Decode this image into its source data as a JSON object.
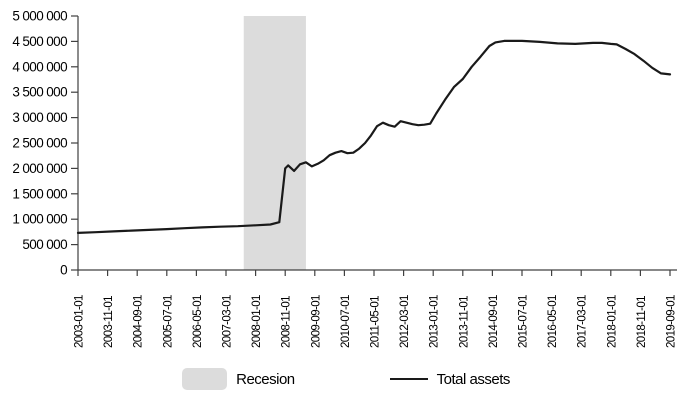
{
  "colors": {
    "background": "#ffffff",
    "axis": "#404040",
    "text": "#000000",
    "recession_band": "#dcdcdc",
    "total_assets_line": "#1a1a1a"
  },
  "legend": {
    "recession_label": "Recesion",
    "total_assets_label": "Total assets"
  },
  "chart_data": {
    "type": "line",
    "title": "",
    "xlabel": "",
    "ylabel": "",
    "grid": false,
    "legend_position": "bottom",
    "ylim": [
      0,
      5000000
    ],
    "y_tick_interval": 500000,
    "y_tick_labels": [
      "0",
      "500 000",
      "1 000 000",
      "1 500 000",
      "2 000 000",
      "2 500 000",
      "3 000 000",
      "3 500 000",
      "4 000 000",
      "4 500 000",
      "5 000 000"
    ],
    "x_range": {
      "start": "2003-01",
      "end": "2019-09"
    },
    "x_tick_labels": [
      "2003-01-01",
      "2003-11-01",
      "2004-09-01",
      "2005-07-01",
      "2006-05-01",
      "2007-03-01",
      "2008-01-01",
      "2008-11-01",
      "2009-09-01",
      "2010-07-01",
      "2011-05-01",
      "2012-03-01",
      "2013-01-01",
      "2013-11-01",
      "2014-09-01",
      "2015-07-01",
      "2016-05-01",
      "2017-03-01",
      "2018-01-01",
      "2018-11-01",
      "2019-09-01"
    ],
    "recession_band": {
      "label": "Recesion",
      "start": "2007-09",
      "end": "2009-06",
      "color": "#dcdcdc"
    },
    "series": [
      {
        "name": "Total assets",
        "color": "#1a1a1a",
        "points": [
          [
            "2003-01",
            730000
          ],
          [
            "2003-07",
            745000
          ],
          [
            "2004-01",
            760000
          ],
          [
            "2004-07",
            775000
          ],
          [
            "2005-01",
            790000
          ],
          [
            "2005-07",
            805000
          ],
          [
            "2006-01",
            822000
          ],
          [
            "2006-07",
            838000
          ],
          [
            "2007-01",
            852000
          ],
          [
            "2007-07",
            862000
          ],
          [
            "2008-01",
            880000
          ],
          [
            "2008-06",
            895000
          ],
          [
            "2008-09",
            940000
          ],
          [
            "2008-11",
            2000000
          ],
          [
            "2008-12",
            2060000
          ],
          [
            "2009-02",
            1950000
          ],
          [
            "2009-04",
            2080000
          ],
          [
            "2009-06",
            2120000
          ],
          [
            "2009-08",
            2040000
          ],
          [
            "2009-10",
            2090000
          ],
          [
            "2009-12",
            2160000
          ],
          [
            "2010-02",
            2260000
          ],
          [
            "2010-04",
            2310000
          ],
          [
            "2010-06",
            2340000
          ],
          [
            "2010-08",
            2300000
          ],
          [
            "2010-10",
            2310000
          ],
          [
            "2010-12",
            2390000
          ],
          [
            "2011-02",
            2500000
          ],
          [
            "2011-04",
            2650000
          ],
          [
            "2011-06",
            2830000
          ],
          [
            "2011-08",
            2900000
          ],
          [
            "2011-10",
            2850000
          ],
          [
            "2011-12",
            2820000
          ],
          [
            "2012-02",
            2930000
          ],
          [
            "2012-04",
            2900000
          ],
          [
            "2012-06",
            2870000
          ],
          [
            "2012-08",
            2850000
          ],
          [
            "2012-10",
            2860000
          ],
          [
            "2012-12",
            2880000
          ],
          [
            "2013-02",
            3080000
          ],
          [
            "2013-05",
            3350000
          ],
          [
            "2013-08",
            3600000
          ],
          [
            "2013-11",
            3760000
          ],
          [
            "2014-02",
            4000000
          ],
          [
            "2014-05",
            4200000
          ],
          [
            "2014-08",
            4410000
          ],
          [
            "2014-10",
            4480000
          ],
          [
            "2015-01",
            4510000
          ],
          [
            "2015-07",
            4510000
          ],
          [
            "2016-01",
            4490000
          ],
          [
            "2016-07",
            4460000
          ],
          [
            "2017-01",
            4450000
          ],
          [
            "2017-07",
            4470000
          ],
          [
            "2017-10",
            4470000
          ],
          [
            "2018-01",
            4450000
          ],
          [
            "2018-03",
            4440000
          ],
          [
            "2018-06",
            4350000
          ],
          [
            "2018-09",
            4250000
          ],
          [
            "2018-12",
            4120000
          ],
          [
            "2019-03",
            3980000
          ],
          [
            "2019-06",
            3870000
          ],
          [
            "2019-09",
            3850000
          ]
        ]
      }
    ]
  }
}
